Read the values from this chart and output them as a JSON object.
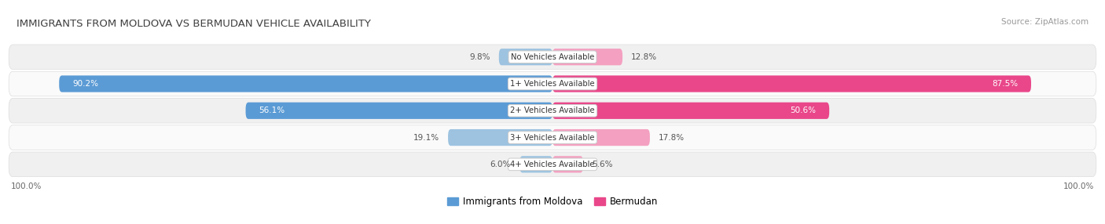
{
  "title": "IMMIGRANTS FROM MOLDOVA VS BERMUDAN VEHICLE AVAILABILITY",
  "source": "Source: ZipAtlas.com",
  "categories": [
    "No Vehicles Available",
    "1+ Vehicles Available",
    "2+ Vehicles Available",
    "3+ Vehicles Available",
    "4+ Vehicles Available"
  ],
  "moldova_values": [
    9.8,
    90.2,
    56.1,
    19.1,
    6.0
  ],
  "bermudan_values": [
    12.8,
    87.5,
    50.6,
    17.8,
    5.6
  ],
  "moldova_color": "#9dc3e0",
  "bermudan_color": "#f4a0c0",
  "moldova_color_strong": "#5b9bd5",
  "bermudan_color_strong": "#e9478a",
  "bar_height": 0.62,
  "title_color": "#404040",
  "source_color": "#999999",
  "max_value": 100.0,
  "legend_moldova": "Immigrants from Moldova",
  "legend_bermudan": "Bermudan",
  "row_bg_even": "#f0f0f0",
  "row_bg_odd": "#fafafa",
  "center_label_bg": "#ffffff",
  "center_label_border": "#cccccc"
}
